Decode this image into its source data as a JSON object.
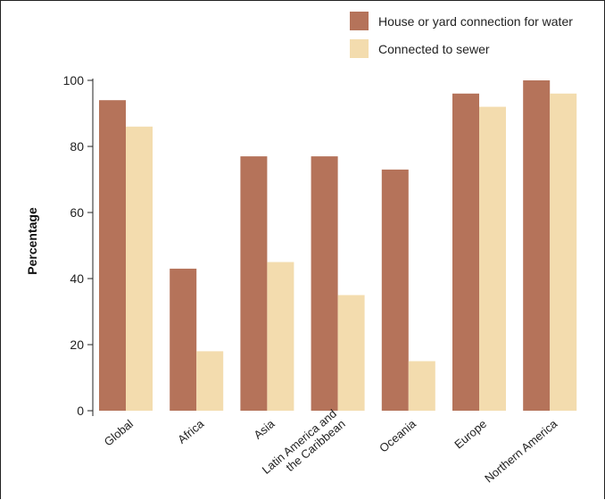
{
  "chart_data": {
    "type": "bar",
    "title": "",
    "xlabel": "",
    "ylabel": "Percentage",
    "ylim": [
      0,
      100
    ],
    "yticks": [
      0,
      20,
      40,
      60,
      80,
      100
    ],
    "grid": false,
    "legend_position": "top-right",
    "categories": [
      [
        "Global"
      ],
      [
        "Africa"
      ],
      [
        "Asia"
      ],
      [
        "Latin America and",
        "the Caribbean"
      ],
      [
        "Oceania"
      ],
      [
        "Europe"
      ],
      [
        "Northern America"
      ]
    ],
    "series": [
      {
        "name": "House or yard connection for water",
        "color": "#b5735a",
        "values": [
          94,
          43,
          77,
          77,
          73,
          96,
          100
        ]
      },
      {
        "name": "Connected to sewer",
        "color": "#f3dcae",
        "values": [
          86,
          18,
          45,
          35,
          15,
          92,
          96
        ]
      }
    ]
  }
}
